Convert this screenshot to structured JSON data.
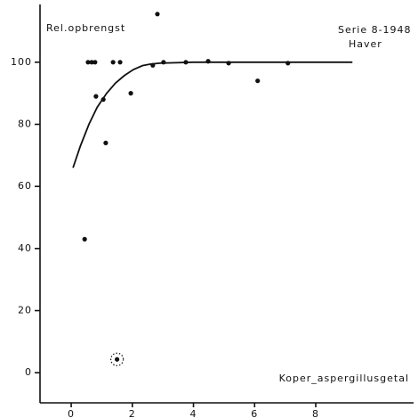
{
  "chart_data": {
    "type": "scatter",
    "ylabel": "Rel.opbrengst",
    "annotations": [
      "Serie 8-1948",
      "Haver"
    ],
    "xlabel": "Koper_aspergillusgetal",
    "x": [
      0.44,
      0.55,
      0.67,
      0.78,
      0.81,
      1.05,
      1.13,
      1.37,
      1.6,
      1.95,
      2.67,
      2.82,
      3.02,
      3.75,
      4.48,
      5.15,
      6.1,
      7.09,
      1.5
    ],
    "values": [
      43,
      100,
      100,
      100,
      89,
      88,
      74,
      100,
      100,
      90,
      99,
      115.5,
      100,
      100,
      100.3,
      99.7,
      94,
      99.7,
      4.3
    ],
    "highlight": 18,
    "color": "#111111",
    "curve": {
      "x": [
        0.06,
        0.3,
        0.58,
        0.85,
        1.16,
        1.45,
        1.74,
        2.03,
        2.33,
        2.6,
        2.9,
        4,
        6,
        9.2
      ],
      "values": [
        66,
        73,
        80,
        85.5,
        90,
        93.3,
        95.7,
        97.6,
        98.9,
        99.4,
        99.7,
        100,
        100,
        100
      ]
    },
    "xlim": [
      -1.02,
      11.2
    ],
    "ylim": [
      -9.7,
      118.6
    ],
    "xticks": [
      0,
      2,
      4,
      6,
      8
    ],
    "yticks": [
      0,
      20,
      40,
      60,
      80,
      100
    ]
  }
}
